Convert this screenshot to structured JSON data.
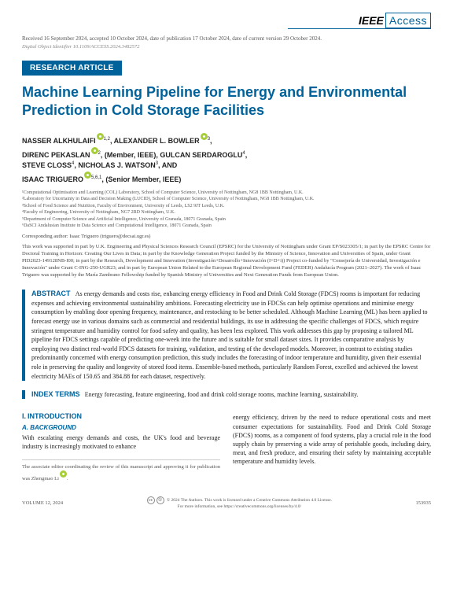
{
  "logo": {
    "ieee": "IEEE",
    "access": "Access"
  },
  "dates": "Received 16 September 2024, accepted 10 October 2024, date of publication 17 October 2024, date of current version 29 October 2024.",
  "doi": "Digital Object Identifier 10.1109/ACCESS.2024.3482572",
  "badge": "RESEARCH ARTICLE",
  "title": "Machine Learning Pipeline for Energy and Environmental Prediction in Cold Storage Facilities",
  "authors_html": "NASSER ALKHULAIFI<sup>1,2</sup>, ALEXANDER L. BOWLER<sup>3</sup>, DIRENC PEKASLAN<sup>2</sup>, (Member, IEEE), GULCAN SERDAROGLU<sup>4</sup>, STEVE CLOSS<sup>4</sup>, NICHOLAS J. WATSON<sup>3</sup>, AND ISAAC TRIGUERO<sup>5,6,1</sup>, (Senior Member, IEEE)",
  "affiliations": [
    "¹Computational Optimisation and Learning (COL) Laboratory, School of Computer Science, University of Nottingham, NG8 1BB Nottingham, U.K.",
    "²Laboratory for Uncertainty in Data and Decision Making (LUCID), School of Computer Science, University of Nottingham, NG8 1BB Nottingham, U.K.",
    "³School of Food Science and Nutrition, Faculty of Environment, University of Leeds, LS2 9JT Leeds, U.K.",
    "⁴Faculty of Engineering, University of Nottingham, NG7 2RD Nottingham, U.K.",
    "⁵Department of Computer Science and Artificial Intelligence, University of Granada, 18071 Granada, Spain",
    "⁶DaSCI Andalusian Institute in Data Science and Computational Intelligence, 18071 Granada, Spain"
  ],
  "corresponding": "Corresponding author: Isaac Triguero (triguero@decsai.ugr.es)",
  "funding": "This work was supported in part by U.K. Engineering and Physical Sciences Research Council (EPSRC) for the University of Nottingham under Grant EP/S023305/1; in part by the EPSRC Centre for Doctoral Training in Horizon: Creating Our Lives in Data; in part by the Knowledge Generation Project funded by the Ministry of Science, Innovation and Universities of Spain, under Grant PID2023-149128NB-I00; in part by the Research, Development and Innovation (Investigación+Desarrollo+Innovación (I+D+i)) Project co-funded by \"Consejería de Universidad, Investigación e Innovación\" under Grant C-ING-250-UGR23; and in part by European Union Related to the European Regional Development Fund (FEDER) Andalucía Program (2021–2027). The work of Isaac Triguero was supported by the María Zambrano Fellowship funded by Spanish Ministry of Universities and Next Generation Funds from European Union.",
  "abstract_label": "ABSTRACT",
  "abstract": "As energy demands and costs rise, enhancing energy efficiency in Food and Drink Cold Storage (FDCS) rooms is important for reducing expenses and achieving environmental sustainability ambitions. Forecasting electricity use in FDCSs can help optimise operations and minimise energy consumption by enabling door opening frequency, maintenance, and restocking to be better scheduled. Although Machine Learning (ML) has been applied to forecast energy use in various domains such as commercial and residential buildings, its use in addressing the specific challenges of FDCS, which require stringent temperature and humidity control for food safety and quality, has been less explored. This work addresses this gap by proposing a tailored ML pipeline for FDCS settings capable of predicting one-week into the future and is suitable for small dataset sizes. It provides comparative analysis by employing two distinct real-world FDCS datasets for training, validation, and testing of the developed models. Moreover, in contrast to existing studies predominantly concerned with energy consumption prediction, this study includes the forecasting of indoor temperature and humidity, given their essential role in preserving the quality and longevity of stored food items. Ensemble-based methods, particularly Random Forest, excelled and achieved the lowest electricity MAEs of 150.65 and 384.88 for each dataset, respectively.",
  "index_label": "INDEX TERMS",
  "index_terms": "Energy forecasting, feature engineering, food and drink cold storage rooms, machine learning, sustainability.",
  "section1_num": "I.",
  "section1_title": "INTRODUCTION",
  "subsection_a": "A. BACKGROUND",
  "col1_text": "With escalating energy demands and costs, the UK's food and beverage industry is increasingly motivated to enhance",
  "editor_note": "The associate editor coordinating the review of this manuscript and approving it for publication was Zhengmao Li",
  "col2_text": "energy efficiency, driven by the need to reduce operational costs and meet consumer expectations for sustainability. Food and Drink Cold Storage (FDCS) rooms, as a component of food systems, play a crucial role in the food supply chain by preserving a wide array of perishable goods, including dairy, meat, and fresh produce, and ensuring their safety by maintaining acceptable temperature and humidity levels.",
  "footer": {
    "volume": "VOLUME 12, 2024",
    "license1": "© 2024 The Authors. This work is licensed under a Creative Commons Attribution 4.0 License.",
    "license2": "For more information, see https://creativecommons.org/licenses/by/4.0/",
    "page": "153935"
  },
  "colors": {
    "primary": "#00629b",
    "orcid": "#a6ce39",
    "text": "#222222",
    "muted": "#555555"
  }
}
